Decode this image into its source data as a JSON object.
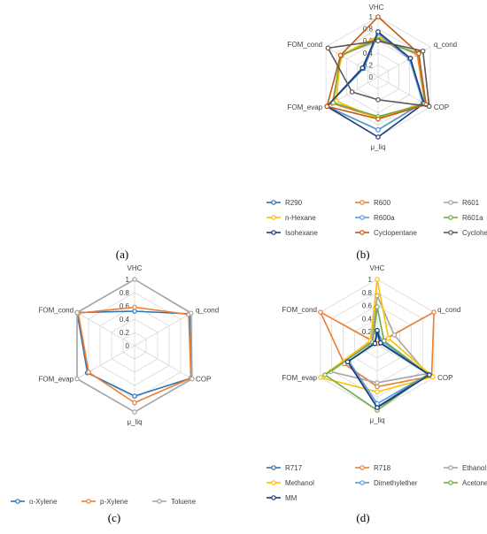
{
  "chart_data": [
    {
      "type": "radar",
      "panel_label": "(a)",
      "axes": [],
      "ticks": [],
      "series": [],
      "legend": []
    },
    {
      "type": "radar",
      "panel_label": "(b)",
      "axes": [
        "VHC",
        "q_cond",
        "COP",
        "μ_liq",
        "FOM_evap",
        "FOM_cond"
      ],
      "ticks": [
        "0",
        "0.2",
        "0.4",
        "0.6",
        "0.8",
        "1"
      ],
      "range": [
        0,
        1
      ],
      "legend_position": "bottom",
      "series": [
        {
          "name": "R290",
          "color": "#2E75B6",
          "values": [
            0.72,
            0.62,
            0.86,
            0.88,
            0.98,
            0.28
          ]
        },
        {
          "name": "R600",
          "color": "#ED7D31",
          "values": [
            0.65,
            0.75,
            0.9,
            0.68,
            0.88,
            0.7
          ]
        },
        {
          "name": "R601",
          "color": "#A5A5A5",
          "values": [
            0.6,
            0.78,
            0.9,
            0.66,
            0.86,
            0.72
          ]
        },
        {
          "name": "n-Hexane",
          "color": "#FFC000",
          "values": [
            0.68,
            0.62,
            0.86,
            0.7,
            0.8,
            0.72
          ]
        },
        {
          "name": "R600a",
          "color": "#5B9BD5",
          "values": [
            0.72,
            0.6,
            0.86,
            0.88,
            0.98,
            0.3
          ]
        },
        {
          "name": "R601a",
          "color": "#70AD47",
          "values": [
            0.62,
            0.78,
            0.9,
            0.66,
            0.86,
            0.72
          ]
        },
        {
          "name": "Isohexane",
          "color": "#1F3A7A",
          "values": [
            0.75,
            0.62,
            0.88,
            1.0,
            0.98,
            0.3
          ]
        },
        {
          "name": "Cyclopentane",
          "color": "#C55A11",
          "values": [
            1.0,
            0.78,
            0.92,
            0.7,
            0.98,
            0.72
          ]
        },
        {
          "name": "Cyclohexane",
          "color": "#595959",
          "values": [
            0.6,
            0.86,
            0.98,
            0.38,
            0.5,
            0.96
          ]
        }
      ]
    },
    {
      "type": "radar",
      "panel_label": "(c)",
      "axes": [
        "VHC",
        "q_cond",
        "COP",
        "μ_liq",
        "FOM_evap",
        "FOM_cond"
      ],
      "ticks": [
        "0",
        "0.2",
        "0.4",
        "0.6",
        "0.8",
        "1"
      ],
      "range": [
        0,
        1
      ],
      "legend_position": "bottom",
      "series": [
        {
          "name": "o-Xylene",
          "color": "#2E75B6",
          "values": [
            0.52,
            0.96,
            0.98,
            0.76,
            0.82,
            1.0
          ]
        },
        {
          "name": "p-Xylene",
          "color": "#ED7D31",
          "values": [
            0.58,
            0.94,
            0.98,
            0.86,
            0.8,
            0.98
          ]
        },
        {
          "name": "Toluene",
          "color": "#A5A5A5",
          "values": [
            1.0,
            0.98,
            1.0,
            1.0,
            1.0,
            1.0
          ]
        }
      ]
    },
    {
      "type": "radar",
      "panel_label": "(d)",
      "axes": [
        "VHC",
        "q_cond",
        "COP",
        "μ_liq",
        "FOM_evap",
        "FOM_cond"
      ],
      "ticks": [
        "0",
        "0.2",
        "0.4",
        "0.6",
        "0.8",
        "1"
      ],
      "range": [
        0,
        1
      ],
      "legend_position": "bottom",
      "series": [
        {
          "name": "R717",
          "color": "#2E75B6",
          "values": [
            0.18,
            0.05,
            0.9,
            0.95,
            0.52,
            0.04
          ]
        },
        {
          "name": "R718",
          "color": "#ED7D31",
          "values": [
            0.02,
            1.0,
            0.96,
            0.64,
            0.58,
            1.0
          ]
        },
        {
          "name": "Ethanol",
          "color": "#A5A5A5",
          "values": [
            0.75,
            0.3,
            0.88,
            0.58,
            0.82,
            0.1
          ]
        },
        {
          "name": "Methanol",
          "color": "#FFC000",
          "values": [
            1.0,
            0.2,
            0.98,
            0.72,
            1.0,
            0.12
          ]
        },
        {
          "name": "Dimethylether",
          "color": "#5B9BD5",
          "values": [
            0.2,
            0.1,
            0.9,
            0.9,
            0.5,
            0.05
          ]
        },
        {
          "name": "Acetone",
          "color": "#70AD47",
          "values": [
            0.58,
            0.12,
            0.9,
            1.0,
            0.92,
            0.08
          ]
        },
        {
          "name": "MM",
          "color": "#1F3A7A",
          "values": [
            0.22,
            0.06,
            0.92,
            0.96,
            0.52,
            0.04
          ]
        }
      ]
    }
  ]
}
